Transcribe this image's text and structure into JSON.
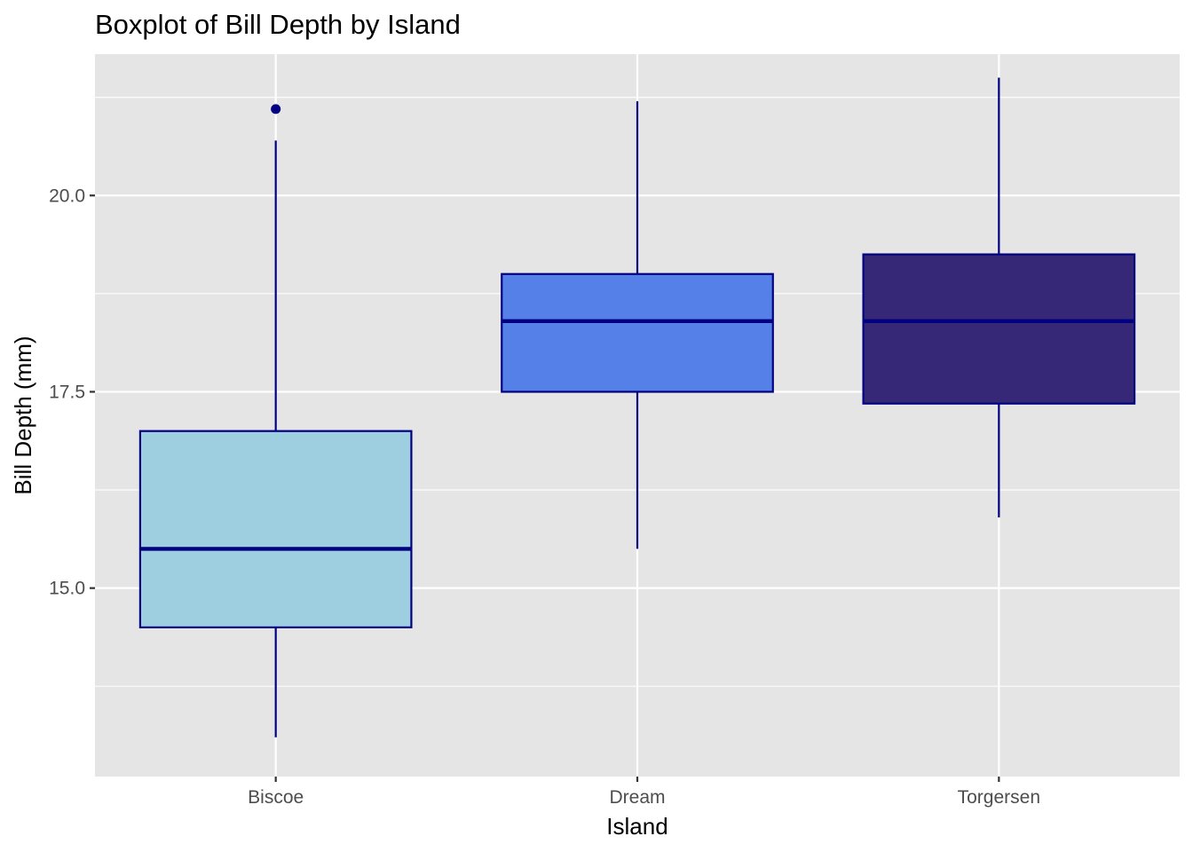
{
  "chart_data": {
    "type": "box",
    "title": "Boxplot of Bill Depth by Island",
    "xlabel": "Island",
    "ylabel": "Bill Depth (mm)",
    "categories": [
      "Biscoe",
      "Dream",
      "Torgersen"
    ],
    "y_ticks": [
      "15.0",
      "17.5",
      "20.0"
    ],
    "ylim": [
      12.6,
      21.8
    ],
    "grid": true,
    "legend": "none",
    "boxes": [
      {
        "category": "Biscoe",
        "whisker_low": 13.1,
        "q1": 14.5,
        "median": 15.5,
        "q3": 17.0,
        "whisker_high": 20.7,
        "outliers": [
          21.1
        ],
        "fill": "#9ecfe0"
      },
      {
        "category": "Dream",
        "whisker_low": 15.5,
        "q1": 17.5,
        "median": 18.4,
        "q3": 19.0,
        "whisker_high": 21.2,
        "outliers": [],
        "fill": "#5580e8"
      },
      {
        "category": "Torgersen",
        "whisker_low": 15.9,
        "q1": 17.35,
        "median": 18.4,
        "q3": 19.25,
        "whisker_high": 21.5,
        "outliers": [],
        "fill": "#372877"
      }
    ],
    "colors": {
      "outline": "#000080",
      "panel": "#e5e5e5",
      "grid": "#ffffff"
    }
  }
}
